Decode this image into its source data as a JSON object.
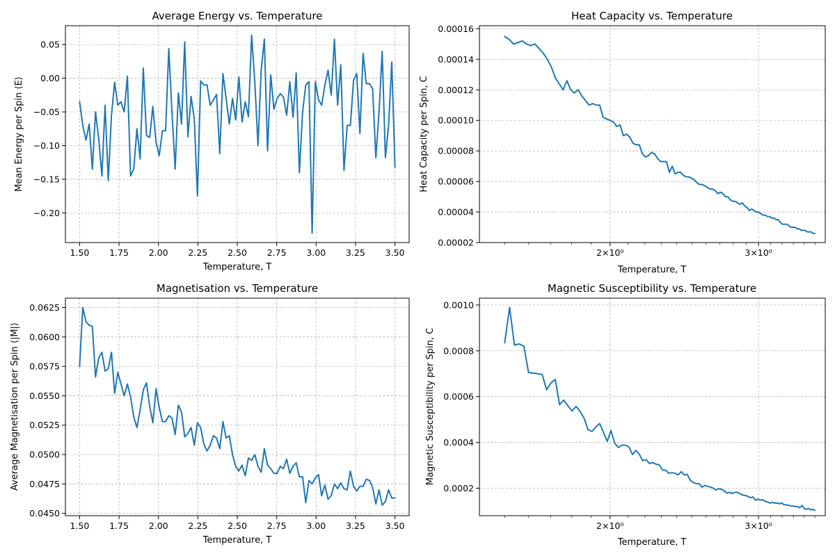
{
  "line_color": "#1f77b4",
  "chart_data": [
    {
      "type": "line",
      "title": "Average Energy vs. Temperature",
      "xlabel": "Temperature, T",
      "ylabel": "Mean Energy per Spin ⟨E⟩",
      "xscale": "linear",
      "grid": true,
      "xlim": [
        1.41,
        3.59
      ],
      "ylim": [
        -0.244,
        0.078
      ],
      "xticks": [
        1.5,
        1.75,
        2.0,
        2.25,
        2.5,
        2.75,
        3.0,
        3.25,
        3.5
      ],
      "xtick_labels": [
        "1.50",
        "1.75",
        "2.00",
        "2.25",
        "2.50",
        "2.75",
        "3.00",
        "3.25",
        "3.50"
      ],
      "yticks": [
        -0.2,
        -0.15,
        -0.1,
        -0.05,
        0.0,
        0.05
      ],
      "ytick_labels": [
        "−0.20",
        "−0.15",
        "−0.10",
        "−0.05",
        "0.00",
        "0.05"
      ],
      "series": [
        {
          "x_start": 1.5,
          "x_end": 3.5,
          "values": [
            -0.035,
            -0.07,
            -0.092,
            -0.068,
            -0.135,
            -0.05,
            -0.09,
            -0.145,
            -0.04,
            -0.152,
            -0.055,
            -0.006,
            -0.04,
            -0.035,
            -0.05,
            0.003,
            -0.145,
            -0.135,
            -0.075,
            -0.12,
            0.015,
            -0.085,
            -0.088,
            -0.042,
            -0.095,
            -0.115,
            -0.078,
            -0.078,
            0.044,
            -0.05,
            -0.135,
            -0.022,
            -0.068,
            0.054,
            -0.087,
            -0.027,
            -0.06,
            -0.175,
            -0.004,
            -0.01,
            -0.01,
            -0.04,
            -0.032,
            -0.024,
            -0.112,
            0.007,
            -0.03,
            -0.068,
            -0.03,
            -0.062,
            0.002,
            -0.065,
            -0.035,
            -0.057,
            0.064,
            -0.005,
            -0.1,
            0.012,
            0.058,
            -0.108,
            0.005,
            -0.046,
            -0.03,
            -0.023,
            -0.028,
            -0.055,
            -0.005,
            -0.058,
            0.008,
            -0.14,
            -0.05,
            -0.01,
            -0.005,
            -0.23,
            -0.005,
            -0.032,
            -0.04,
            -0.01,
            0.012,
            -0.025,
            0.058,
            -0.04,
            0.02,
            -0.137,
            -0.07,
            -0.07,
            -0.003,
            0.007,
            -0.082,
            0.037,
            -0.008,
            -0.008,
            -0.016,
            -0.118,
            -0.05,
            0.04,
            -0.118,
            -0.07,
            0.024,
            -0.132
          ]
        }
      ]
    },
    {
      "type": "line",
      "title": "Heat Capacity vs. Temperature",
      "xlabel": "Temperature, T",
      "ylabel": "Heat Capacity per Spin, C",
      "xscale": "log",
      "grid": true,
      "xlim": [
        1.4,
        3.6
      ],
      "ylim": [
        2e-05,
        0.000162
      ],
      "xticks": [
        2,
        3
      ],
      "xtick_labels": [
        "2×10⁰",
        "3×10⁰"
      ],
      "xminor_ticks": [
        1.5,
        1.6,
        1.7,
        1.8,
        1.9,
        2.1,
        2.2,
        2.3,
        2.4,
        2.5,
        2.6,
        2.7,
        2.8,
        2.9,
        3.1,
        3.2,
        3.3,
        3.4,
        3.5
      ],
      "yticks": [
        2e-05,
        4e-05,
        6e-05,
        8e-05,
        0.0001,
        0.00012,
        0.00014,
        0.00016
      ],
      "ytick_labels": [
        "0.00002",
        "0.00004",
        "0.00006",
        "0.00008",
        "0.00010",
        "0.00012",
        "0.00014",
        "0.00016"
      ],
      "series": [
        {
          "x_start": 1.5,
          "x_end": 3.5,
          "values": [
            0.000155,
            0.000153,
            0.00015,
            0.000151,
            0.000152,
            0.00015,
            0.000149,
            0.00015,
            0.000147,
            0.000144,
            0.00014,
            0.000135,
            0.000128,
            0.000124,
            0.00012,
            0.000126,
            0.00012,
            0.000118,
            0.00012,
            0.000116,
            0.000113,
            0.00011,
            0.000111,
            0.00011,
            0.00011,
            0.000102,
            0.000101,
            0.0001,
            9.9e-05,
            9.6e-05,
            9.7e-05,
            9e-05,
            9.1e-05,
            8.9e-05,
            8.5e-05,
            8.4e-05,
            8.4e-05,
            7.8e-05,
            7.6e-05,
            7.7e-05,
            7.9e-05,
            7.8e-05,
            7.5e-05,
            7.3e-05,
            7.3e-05,
            7.3e-05,
            6.6e-05,
            7e-05,
            6.5e-05,
            6.6e-05,
            6.6e-05,
            6.4e-05,
            6.3e-05,
            6.3e-05,
            6.2e-05,
            6.1e-05,
            5.9e-05,
            5.8e-05,
            5.8e-05,
            5.7e-05,
            5.6e-05,
            5.5e-05,
            5.5e-05,
            5.4e-05,
            5.2e-05,
            5.3e-05,
            5.2e-05,
            5e-05,
            5e-05,
            4.8e-05,
            4.7e-05,
            4.7e-05,
            4.6e-05,
            4.5e-05,
            4.6e-05,
            4.4e-05,
            4.3e-05,
            4.1e-05,
            4.2e-05,
            4.1e-05,
            4e-05,
            4e-05,
            3.9e-05,
            3.8e-05,
            3.8e-05,
            3.7e-05,
            3.7e-05,
            3.6e-05,
            3.6e-05,
            3.5e-05,
            3.5e-05,
            3.3e-05,
            3.2e-05,
            3.2e-05,
            3.2e-05,
            3.1e-05,
            3e-05,
            3e-05,
            3e-05,
            2.9e-05,
            2.9e-05,
            2.8e-05,
            2.8e-05,
            2.8e-05,
            2.7e-05,
            2.7e-05,
            2.7e-05,
            2.6e-05,
            2.6e-05
          ]
        }
      ]
    },
    {
      "type": "line",
      "title": "Magnetisation vs. Temperature",
      "xlabel": "Temperature, T",
      "ylabel": "Average Magnetisation per Spin ⟨|M|⟩",
      "xscale": "linear",
      "grid": true,
      "xlim": [
        1.41,
        3.59
      ],
      "ylim": [
        0.0448,
        0.0633
      ],
      "xticks": [
        1.5,
        1.75,
        2.0,
        2.25,
        2.5,
        2.75,
        3.0,
        3.25,
        3.5
      ],
      "xtick_labels": [
        "1.50",
        "1.75",
        "2.00",
        "2.25",
        "2.50",
        "2.75",
        "3.00",
        "3.25",
        "3.50"
      ],
      "yticks": [
        0.045,
        0.0475,
        0.05,
        0.0525,
        0.055,
        0.0575,
        0.06,
        0.0625
      ],
      "ytick_labels": [
        "0.0450",
        "0.0475",
        "0.0500",
        "0.0525",
        "0.0550",
        "0.0575",
        "0.0600",
        "0.0625"
      ],
      "series": [
        {
          "x_start": 1.5,
          "x_end": 3.5,
          "values": [
            0.0575,
            0.0625,
            0.0613,
            0.061,
            0.0609,
            0.0566,
            0.0582,
            0.0587,
            0.0571,
            0.0573,
            0.0587,
            0.0552,
            0.057,
            0.056,
            0.055,
            0.056,
            0.0549,
            0.0532,
            0.0523,
            0.0538,
            0.0555,
            0.0561,
            0.0541,
            0.0527,
            0.0556,
            0.054,
            0.0528,
            0.0528,
            0.0533,
            0.0531,
            0.0517,
            0.0542,
            0.0536,
            0.0515,
            0.0518,
            0.0523,
            0.0508,
            0.0527,
            0.0523,
            0.0509,
            0.0503,
            0.0508,
            0.0516,
            0.0514,
            0.0505,
            0.0528,
            0.0514,
            0.0516,
            0.05,
            0.049,
            0.0486,
            0.0491,
            0.0482,
            0.0497,
            0.0495,
            0.05,
            0.049,
            0.0485,
            0.0505,
            0.0491,
            0.0488,
            0.0484,
            0.0484,
            0.049,
            0.0488,
            0.0496,
            0.0484,
            0.049,
            0.0493,
            0.0481,
            0.0481,
            0.0459,
            0.0478,
            0.0475,
            0.048,
            0.0483,
            0.0465,
            0.0474,
            0.0462,
            0.0465,
            0.0475,
            0.0471,
            0.0476,
            0.0471,
            0.047,
            0.0486,
            0.0473,
            0.0469,
            0.0473,
            0.0473,
            0.0479,
            0.0478,
            0.0472,
            0.0458,
            0.047,
            0.0457,
            0.046,
            0.047,
            0.0463,
            0.0463
          ]
        }
      ]
    },
    {
      "type": "line",
      "title": "Magnetic Susceptibility vs. Temperature",
      "xlabel": "Temperature, T",
      "ylabel": "Magnetic Susceptibility per Spin, C",
      "xscale": "log",
      "grid": true,
      "xlim": [
        1.4,
        3.6
      ],
      "ylim": [
        8e-05,
        0.00103
      ],
      "xticks": [
        2,
        3
      ],
      "xtick_labels": [
        "2×10⁰",
        "3×10⁰"
      ],
      "xminor_ticks": [
        1.5,
        1.6,
        1.7,
        1.8,
        1.9,
        2.1,
        2.2,
        2.3,
        2.4,
        2.5,
        2.6,
        2.7,
        2.8,
        2.9,
        3.1,
        3.2,
        3.3,
        3.4,
        3.5
      ],
      "yticks": [
        0.0002,
        0.0004,
        0.0006,
        0.0008,
        0.001
      ],
      "ytick_labels": [
        "0.0002",
        "0.0004",
        "0.0006",
        "0.0008",
        "0.0010"
      ],
      "series": [
        {
          "x_start": 1.5,
          "x_end": 3.5,
          "values": [
            0.000835,
            0.00099,
            0.000825,
            0.00083,
            0.00082,
            0.000705,
            0.000703,
            0.0007,
            0.000697,
            0.00063,
            0.00066,
            0.000675,
            0.000565,
            0.000585,
            0.00056,
            0.000538,
            0.000557,
            0.000535,
            0.000505,
            0.000455,
            0.000448,
            0.000468,
            0.000482,
            0.000443,
            0.000405,
            0.000452,
            0.000398,
            0.000378,
            0.000388,
            0.000388,
            0.00038,
            0.000347,
            0.000365,
            0.000348,
            0.00032,
            0.000325,
            0.000308,
            0.000312,
            0.000305,
            0.000302,
            0.00028,
            0.000278,
            0.000265,
            0.000268,
            0.000265,
            0.000258,
            0.000272,
            0.000258,
            0.00026,
            0.000235,
            0.000225,
            0.00022,
            0.00022,
            0.000205,
            0.000212,
            0.000208,
            0.000205,
            0.0002,
            0.000192,
            0.000198,
            0.000195,
            0.000188,
            0.000178,
            0.000182,
            0.000177,
            0.000182,
            0.000182,
            0.000175,
            0.00017,
            0.000168,
            0.000165,
            0.000158,
            0.000162,
            0.000148,
            0.000152,
            0.000148,
            0.00015,
            0.000142,
            0.00014,
            0.000135,
            0.000138,
            0.000135,
            0.000135,
            0.000132,
            0.000135,
            0.000128,
            0.000128,
            0.000125,
            0.000122,
            0.000122,
            0.00012,
            0.00012,
            0.000115,
            0.000125,
            0.000112,
            0.000108,
            0.000112,
            0.000105,
            0.000108,
            0.000103
          ]
        }
      ]
    }
  ]
}
